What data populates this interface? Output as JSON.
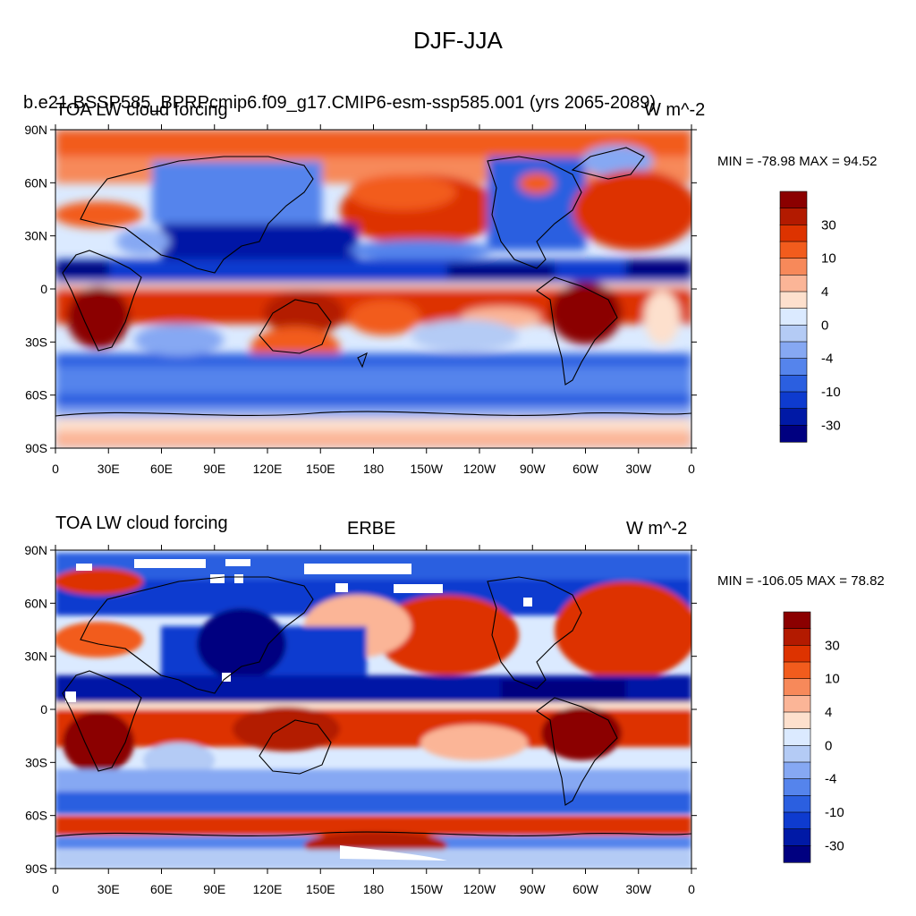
{
  "main_title": "DJF-JJA",
  "panels": [
    {
      "left_title": "TOA LW cloud forcing",
      "center_title": "b.e21.BSSP585_BPRPcmip6.f09_g17.CMIP6-esm-ssp585.001 (yrs 2065-2089)",
      "right_title": "W m^-2",
      "stats": "MIN = -78.98 MAX =  94.52"
    },
    {
      "left_title": "TOA LW cloud forcing",
      "center_title": "ERBE",
      "right_title": "W m^-2",
      "stats": "MIN = -106.05 MAX =  78.82"
    }
  ],
  "colorbar": {
    "labels": [
      "30",
      "10",
      "4",
      "0",
      "-4",
      "-10",
      "-30"
    ],
    "colors": [
      "#8b0000",
      "#b31a00",
      "#dd3300",
      "#f25c1d",
      "#f7895a",
      "#fbb597",
      "#fde0cd",
      "#dbeaff",
      "#b4cbf5",
      "#86a8f3",
      "#5584ec",
      "#2b5fe0",
      "#0e3bcf",
      "#0019a6",
      "#000080"
    ]
  },
  "axes": {
    "lat_labels": [
      "90N",
      "60N",
      "30N",
      "0",
      "30S",
      "60S",
      "90S"
    ],
    "lon_labels": [
      "0",
      "30E",
      "60E",
      "90E",
      "120E",
      "150E",
      "180",
      "150W",
      "120W",
      "90W",
      "60W",
      "30W",
      "0"
    ]
  }
}
